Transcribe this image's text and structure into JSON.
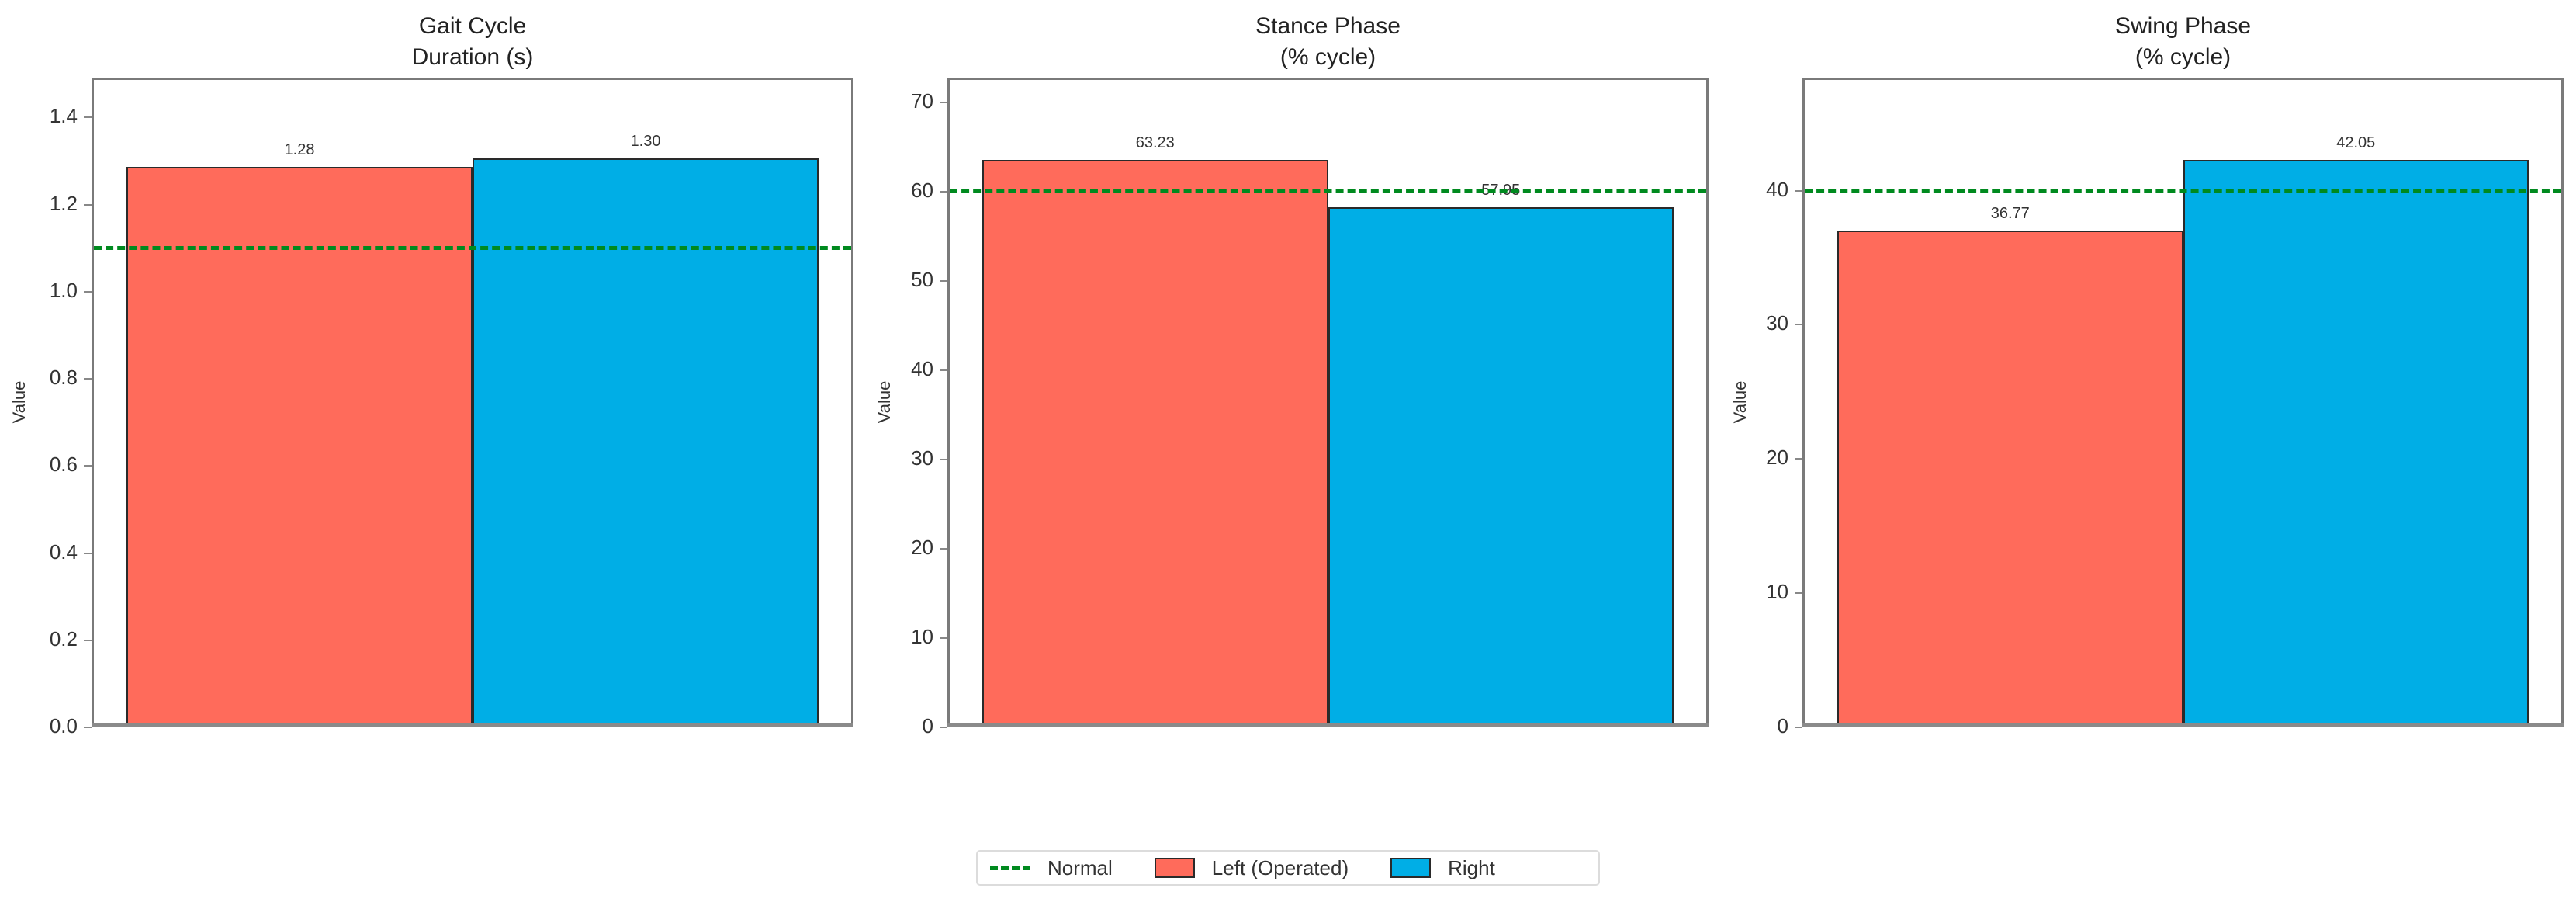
{
  "chart_data": [
    {
      "type": "bar",
      "title": "Gait Cycle\nDuration (s)",
      "title_lines": [
        "Gait Cycle",
        "Duration (s)"
      ],
      "xlabel": "",
      "ylabel": "Value",
      "categories": [
        "Left (Operated)",
        "Right"
      ],
      "series": [
        {
          "name": "Left (Operated)",
          "values": [
            1.28
          ]
        },
        {
          "name": "Right",
          "values": [
            1.3
          ]
        }
      ],
      "values": [
        1.28,
        1.3
      ],
      "value_labels": [
        "1.28",
        "1.30"
      ],
      "reference_line": {
        "name": "Normal",
        "value": 1.1,
        "style": "dashed",
        "color": "#008a1f"
      },
      "ylim": [
        0,
        1.49
      ],
      "yticks": [
        0.0,
        0.2,
        0.4,
        0.6,
        0.8,
        1.0,
        1.2,
        1.4
      ],
      "ytick_labels": [
        "0.0",
        "0.2",
        "0.4",
        "0.6",
        "0.8",
        "1.0",
        "1.2",
        "1.4"
      ],
      "grid": false
    },
    {
      "type": "bar",
      "title": "Stance Phase\n(% cycle)",
      "title_lines": [
        "Stance Phase",
        "(% cycle)"
      ],
      "xlabel": "",
      "ylabel": "Value",
      "categories": [
        "Left (Operated)",
        "Right"
      ],
      "series": [
        {
          "name": "Left (Operated)",
          "values": [
            63.23
          ]
        },
        {
          "name": "Right",
          "values": [
            57.95
          ]
        }
      ],
      "values": [
        63.23,
        57.95
      ],
      "value_labels": [
        "63.23",
        "57.95"
      ],
      "reference_line": {
        "name": "Normal",
        "value": 60,
        "style": "dashed",
        "color": "#008a1f"
      },
      "ylim": [
        0,
        72.7
      ],
      "yticks": [
        0,
        10,
        20,
        30,
        40,
        50,
        60,
        70
      ],
      "ytick_labels": [
        "0",
        "10",
        "20",
        "30",
        "40",
        "50",
        "60",
        "70"
      ],
      "grid": false
    },
    {
      "type": "bar",
      "title": "Swing Phase\n(% cycle)",
      "title_lines": [
        "Swing Phase",
        "(% cycle)"
      ],
      "xlabel": "",
      "ylabel": "Value",
      "categories": [
        "Left (Operated)",
        "Right"
      ],
      "series": [
        {
          "name": "Left (Operated)",
          "values": [
            36.77
          ]
        },
        {
          "name": "Right",
          "values": [
            42.05
          ]
        }
      ],
      "values": [
        36.77,
        42.05
      ],
      "value_labels": [
        "36.77",
        "42.05"
      ],
      "reference_line": {
        "name": "Normal",
        "value": 40,
        "style": "dashed",
        "color": "#008a1f"
      },
      "ylim": [
        0,
        48.36
      ],
      "yticks": [
        0,
        10,
        20,
        30,
        40
      ],
      "ytick_labels": [
        "0",
        "10",
        "20",
        "30",
        "40"
      ],
      "grid": false
    }
  ],
  "legend": {
    "position": "bottom-center",
    "items": [
      {
        "label": "Normal",
        "kind": "dashed-line",
        "color": "#008a1f"
      },
      {
        "label": "Left (Operated)",
        "kind": "swatch",
        "color": "#FF6B5B"
      },
      {
        "label": "Right",
        "kind": "swatch",
        "color": "#00AEE6"
      }
    ]
  },
  "colors": {
    "left": "#FF6B5B",
    "right": "#00AEE6",
    "normal": "#008a1f"
  }
}
